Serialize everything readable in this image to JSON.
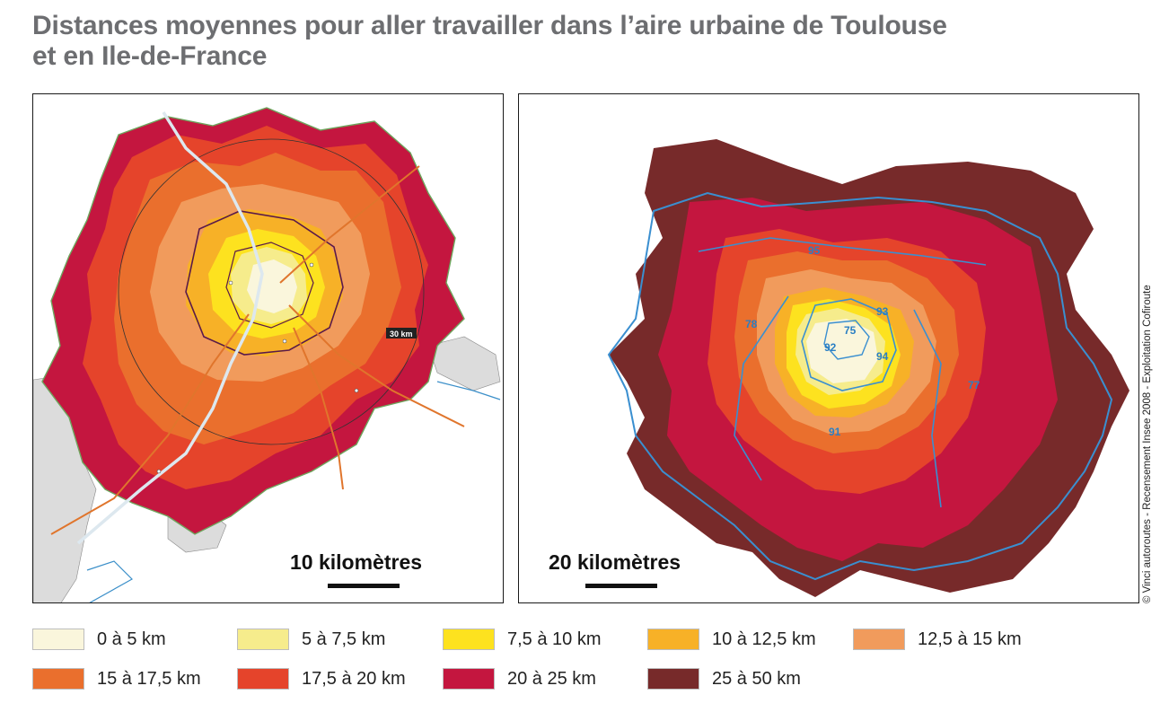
{
  "title": {
    "line1": "Distances moyennes pour aller travailler dans l’aire urbaine de Toulouse",
    "line2": "et en Ile-de-France"
  },
  "map_toulouse": {
    "scale_label": "10 kilomètres",
    "ring_label": "30 km"
  },
  "map_idf": {
    "scale_label": "20 kilomètres",
    "departments": [
      "95",
      "93",
      "75",
      "78",
      "92",
      "94",
      "77",
      "91"
    ]
  },
  "credit": "© Vinci autoroutes - Recensement Insee 2008 - Exploitation Cofiroute",
  "legend": [
    {
      "label": "0 à 5 km",
      "color": "#faf6dc"
    },
    {
      "label": "5 à 7,5 km",
      "color": "#f6ec8c"
    },
    {
      "label": "7,5 à 10 km",
      "color": "#fde21f"
    },
    {
      "label": "10 à 12,5 km",
      "color": "#f7b127"
    },
    {
      "label": "12,5 à 15 km",
      "color": "#f19b5c"
    },
    {
      "label": "15 à 17,5 km",
      "color": "#ea6f2d"
    },
    {
      "label": "17,5 à 20 km",
      "color": "#e5442b"
    },
    {
      "label": "20 à 25 km",
      "color": "#c4163f"
    },
    {
      "label": "25 à 50 km",
      "color": "#772a2a"
    }
  ]
}
